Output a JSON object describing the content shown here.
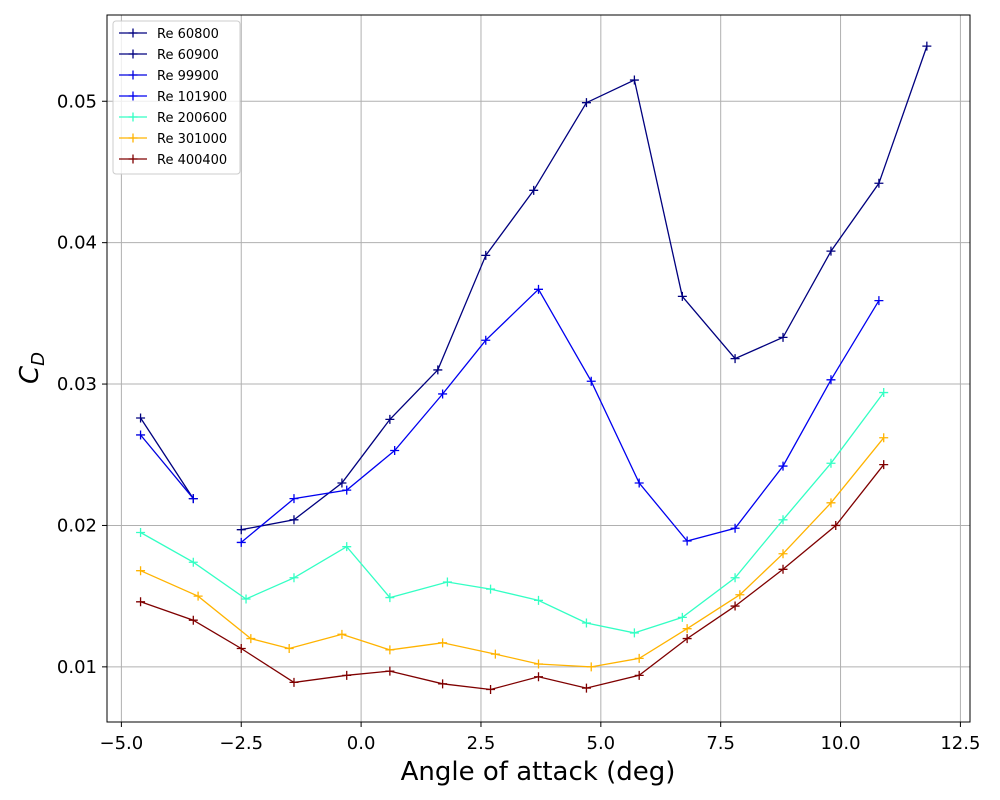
{
  "chart_data": {
    "type": "line",
    "xlabel": "Angle of attack (deg)",
    "ylabel_main": "C",
    "ylabel_sub": "D",
    "xlim": [
      -5.3,
      12.7
    ],
    "ylim": [
      0.0061,
      0.0561
    ],
    "xticks": [
      -5.0,
      -2.5,
      0.0,
      2.5,
      5.0,
      7.5,
      10.0,
      12.5
    ],
    "xtick_labels": [
      "−5.0",
      "−2.5",
      "0.0",
      "2.5",
      "5.0",
      "7.5",
      "10.0",
      "12.5"
    ],
    "yticks": [
      0.01,
      0.02,
      0.03,
      0.04,
      0.05
    ],
    "ytick_labels": [
      "0.01",
      "0.02",
      "0.03",
      "0.04",
      "0.05"
    ],
    "grid": true,
    "legend_position": "top-left",
    "series": [
      {
        "name": "Re 60800",
        "color": "#00007f",
        "x": [
          -4.6,
          -3.5
        ],
        "y": [
          0.0276,
          0.0219
        ]
      },
      {
        "name": "Re 60900",
        "color": "#00007f",
        "x": [
          -2.5,
          -1.4,
          -0.4,
          0.6,
          1.6,
          2.6,
          3.6,
          4.7,
          5.7,
          6.7,
          7.8,
          8.8,
          9.8,
          10.8,
          11.8
        ],
        "y": [
          0.0197,
          0.0204,
          0.023,
          0.0275,
          0.031,
          0.0391,
          0.0437,
          0.0499,
          0.0515,
          0.0362,
          0.0318,
          0.0333,
          0.0394,
          0.0442,
          0.0539
        ]
      },
      {
        "name": "Re 99900",
        "color": "#0000e0",
        "x": [
          -4.6,
          -3.5
        ],
        "y": [
          0.0264,
          0.0219
        ]
      },
      {
        "name": "Re 101900",
        "color": "#0000f0",
        "x": [
          -2.5,
          -1.4,
          -0.3,
          0.7,
          1.7,
          2.6,
          3.7,
          4.8,
          5.8,
          6.8,
          7.8,
          8.8,
          9.8,
          10.8
        ],
        "y": [
          0.0188,
          0.0219,
          0.0225,
          0.0253,
          0.0293,
          0.0331,
          0.0367,
          0.0302,
          0.023,
          0.0189,
          0.0198,
          0.0242,
          0.0303,
          0.0359
        ]
      },
      {
        "name": "Re 200600",
        "color": "#33ffc4",
        "x": [
          -4.6,
          -3.5,
          -2.4,
          -1.4,
          -0.3,
          0.6,
          1.8,
          2.7,
          3.7,
          4.7,
          5.7,
          6.7,
          7.8,
          8.8,
          9.8,
          10.9
        ],
        "y": [
          0.0195,
          0.0174,
          0.0148,
          0.0163,
          0.0185,
          0.0149,
          0.016,
          0.0155,
          0.0147,
          0.0131,
          0.0124,
          0.0135,
          0.0163,
          0.0204,
          0.0244,
          0.0294
        ]
      },
      {
        "name": "Re 301000",
        "color": "#ffb300",
        "x": [
          -4.6,
          -3.4,
          -2.3,
          -1.5,
          -0.4,
          0.6,
          1.7,
          2.8,
          3.7,
          4.8,
          5.8,
          6.8,
          7.9,
          8.8,
          9.8,
          10.9
        ],
        "y": [
          0.0168,
          0.015,
          0.012,
          0.0113,
          0.0123,
          0.0112,
          0.0117,
          0.0109,
          0.0102,
          0.01,
          0.0106,
          0.0127,
          0.0151,
          0.018,
          0.0216,
          0.0262
        ]
      },
      {
        "name": "Re 400400",
        "color": "#7f0000",
        "x": [
          -4.6,
          -3.5,
          -2.5,
          -1.4,
          -0.3,
          0.6,
          1.7,
          2.7,
          3.7,
          4.7,
          5.8,
          6.8,
          7.8,
          8.8,
          9.9,
          10.9
        ],
        "y": [
          0.0146,
          0.0133,
          0.0113,
          0.0089,
          0.0094,
          0.0097,
          0.0088,
          0.0084,
          0.0093,
          0.0085,
          0.0094,
          0.012,
          0.0143,
          0.0169,
          0.02,
          0.0243
        ]
      }
    ]
  }
}
